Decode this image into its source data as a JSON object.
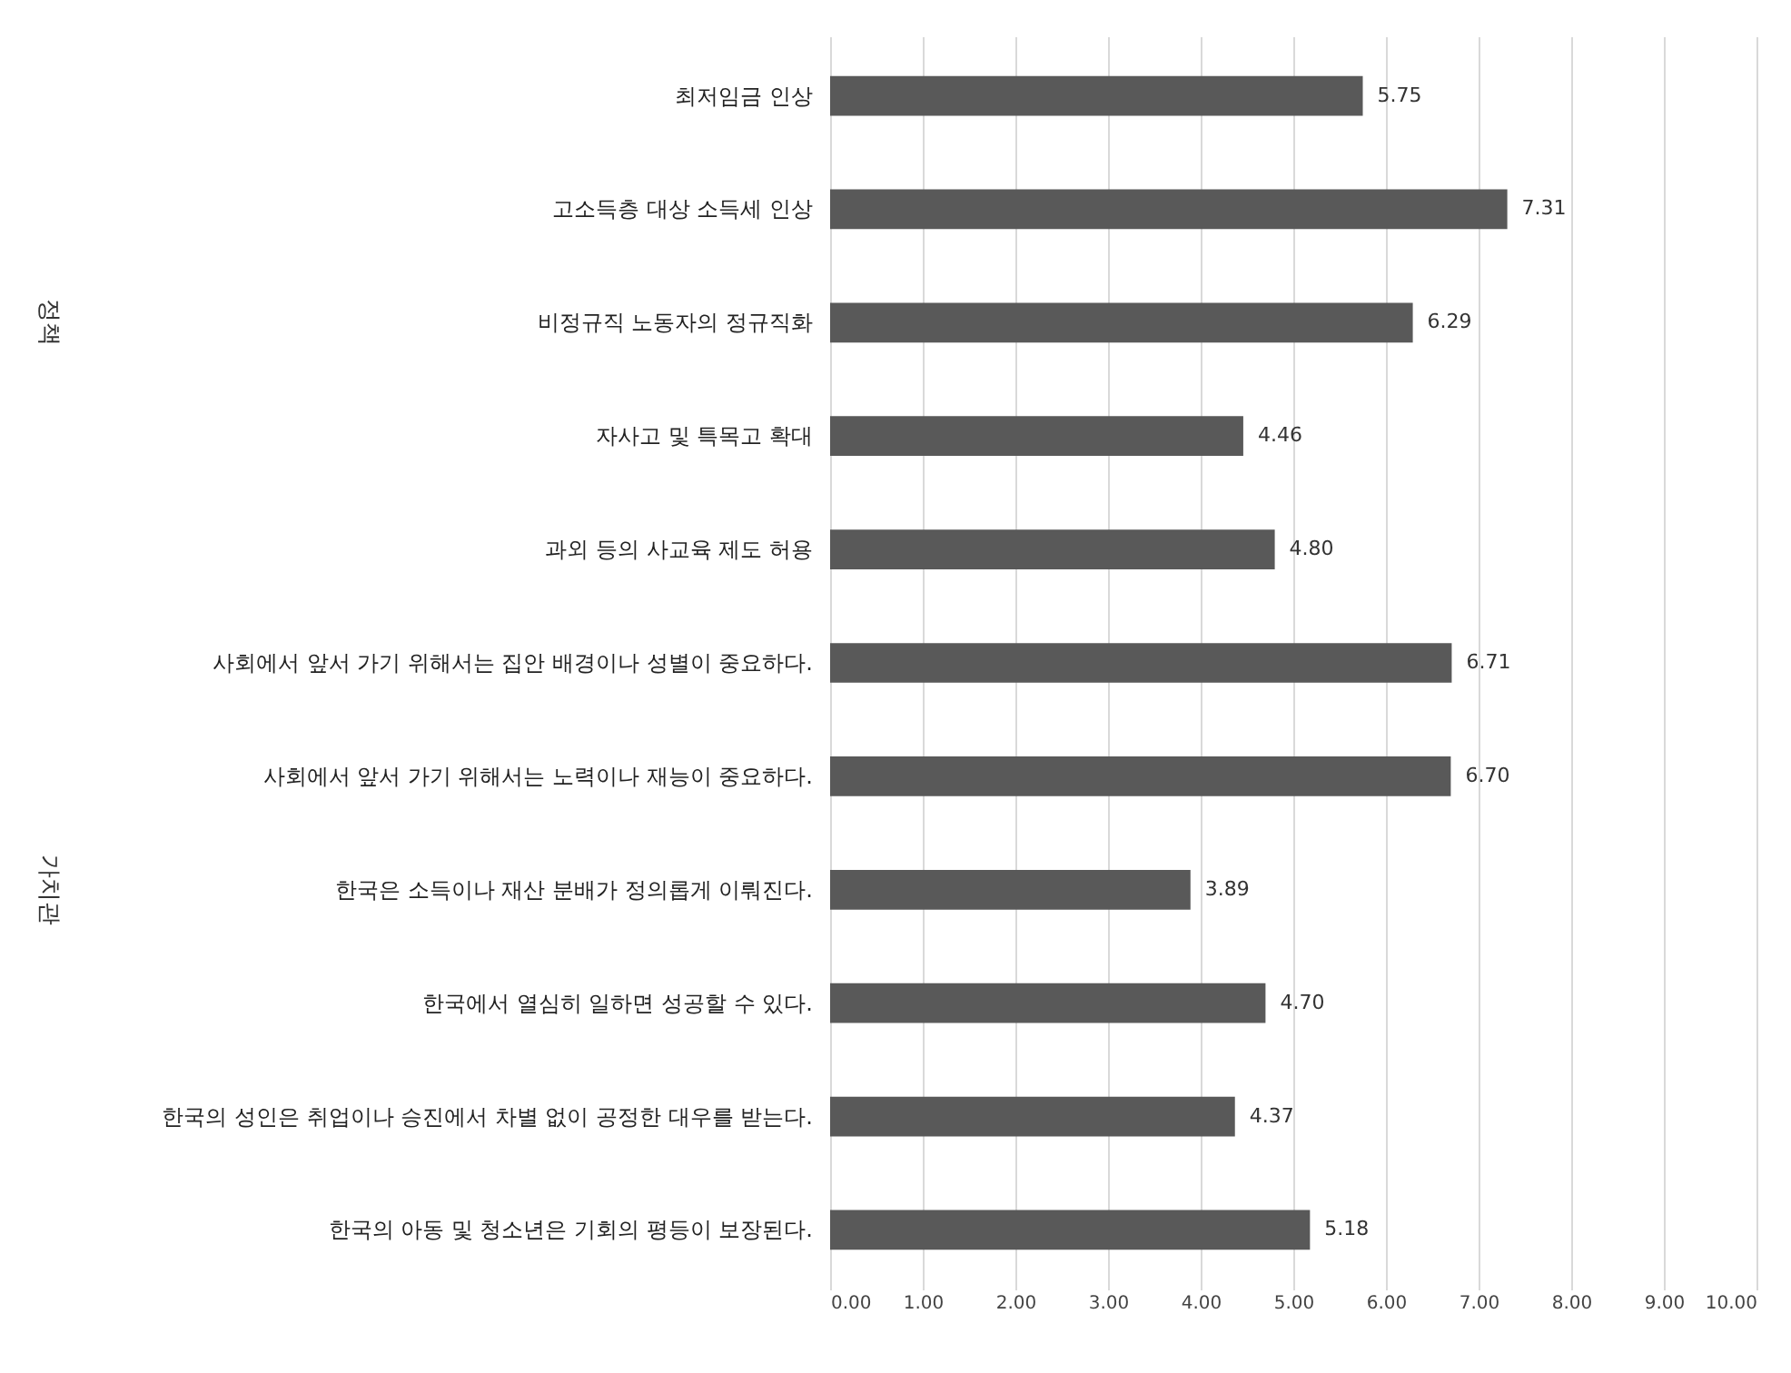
{
  "chart_data": {
    "type": "bar",
    "orientation": "horizontal",
    "categories": [
      "최저임금 인상",
      "고소득층 대상 소득세 인상",
      "비정규직 노동자의 정규직화",
      "자사고 및 특목고 확대",
      "과외 등의 사교육 제도 허용",
      "사회에서 앞서 가기 위해서는 집안 배경이나 성별이 중요하다.",
      "사회에서 앞서 가기 위해서는 노력이나 재능이 중요하다.",
      "한국은 소득이나 재산 분배가 정의롭게 이뤄진다.",
      "한국에서 열심히 일하면 성공할 수 있다.",
      "한국의 성인은 취업이나 승진에서 차별 없이 공정한 대우를 받는다.",
      "한국의 아동 및 청소년은 기회의 평등이 보장된다."
    ],
    "values": [
      5.75,
      7.31,
      6.29,
      4.46,
      4.8,
      6.71,
      6.7,
      3.89,
      4.7,
      4.37,
      5.18
    ],
    "value_labels": [
      "5.75",
      "7.31",
      "6.29",
      "4.46",
      "4.80",
      "6.71",
      "6.70",
      "3.89",
      "4.70",
      "4.37",
      "5.18"
    ],
    "color": "#595959",
    "xlim": [
      0,
      10
    ],
    "xticks": [
      {
        "value": 0,
        "label": "0.00"
      },
      {
        "value": 1,
        "label": "1.00"
      },
      {
        "value": 2,
        "label": "2.00"
      },
      {
        "value": 3,
        "label": "3.00"
      },
      {
        "value": 4,
        "label": "4.00"
      },
      {
        "value": 5,
        "label": "5.00"
      },
      {
        "value": 6,
        "label": "6.00"
      },
      {
        "value": 7,
        "label": "7.00"
      },
      {
        "value": 8,
        "label": "8.00"
      },
      {
        "value": 9,
        "label": "9.00"
      },
      {
        "value": 10,
        "label": "10.00"
      }
    ],
    "grid": "x",
    "annotations": [
      "정책",
      "가치관"
    ]
  }
}
